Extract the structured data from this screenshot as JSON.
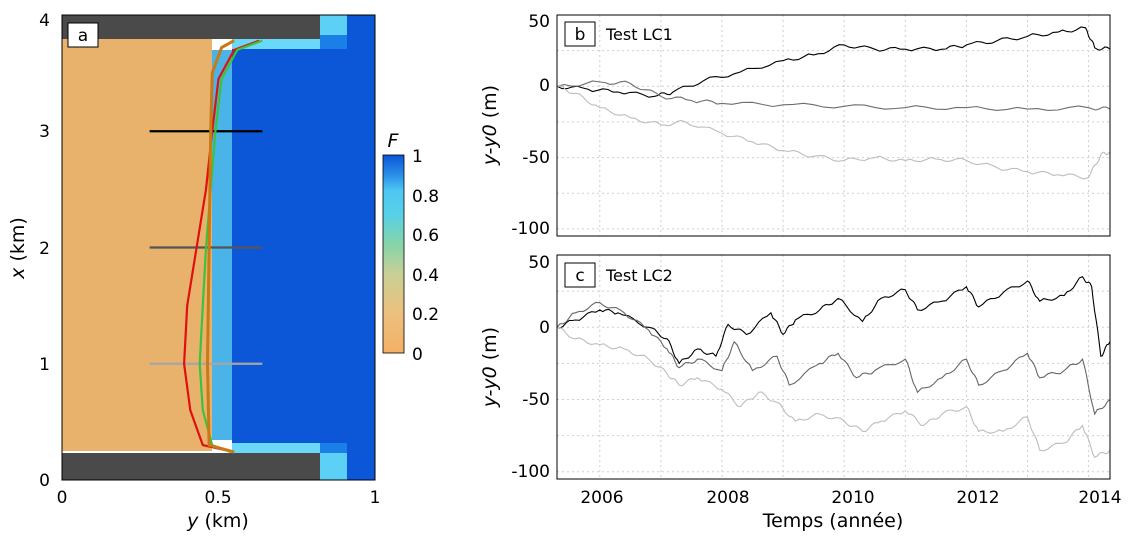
{
  "figure": {
    "panel_a": {
      "tag": "a",
      "xlabel_var": "y",
      "xlabel_unit": " (km)",
      "ylabel_var": "x",
      "ylabel_unit": " (km)",
      "xticks": [
        "0",
        "0.5",
        "1"
      ],
      "yticks": [
        "0",
        "1",
        "2",
        "3",
        "4"
      ],
      "colorbar_title": "F",
      "colorbar_ticks": [
        "0",
        "0.2",
        "0.4",
        "0.6",
        "0.8",
        "1"
      ]
    },
    "panel_b": {
      "tag": "b",
      "title": "Test LC1",
      "ylabel_var": "y-y0",
      "ylabel_unit": " (m)",
      "yticks": [
        "-100",
        "-50",
        "0",
        "50"
      ]
    },
    "panel_c": {
      "tag": "c",
      "title": "Test LC2",
      "ylabel_var": "y-y0",
      "ylabel_unit": " (m)",
      "yticks": [
        "-100",
        "-50",
        "0",
        "50"
      ]
    },
    "time_axis": {
      "xlabel": "Temps (année)",
      "xticks": [
        "2006",
        "2008",
        "2010",
        "2012",
        "2014"
      ]
    }
  },
  "chart_data": [
    {
      "id": "a",
      "type": "heatmap",
      "xlabel": "y (km)",
      "ylabel": "x (km)",
      "xlim": [
        0,
        1
      ],
      "ylim": [
        0,
        4
      ],
      "colorbar": {
        "label": "F",
        "range": [
          0,
          1
        ]
      },
      "transects": [
        {
          "x_km": 3,
          "y_range_km": [
            0.28,
            0.64
          ],
          "color": "#000000"
        },
        {
          "x_km": 2,
          "y_range_km": [
            0.28,
            0.64
          ],
          "color": "#555555"
        },
        {
          "x_km": 1,
          "y_range_km": [
            0.28,
            0.64
          ],
          "color": "#a6a6a6"
        }
      ],
      "shorelines": [
        {
          "color": "#e01010",
          "points": [
            [
              0.55,
              0.24
            ],
            [
              0.45,
              0.3
            ],
            [
              0.41,
              0.6
            ],
            [
              0.39,
              1.0
            ],
            [
              0.4,
              1.5
            ],
            [
              0.43,
              2.0
            ],
            [
              0.46,
              2.5
            ],
            [
              0.48,
              3.0
            ],
            [
              0.5,
              3.45
            ],
            [
              0.55,
              3.7
            ],
            [
              0.63,
              3.78
            ]
          ]
        },
        {
          "color": "#3cc23c",
          "points": [
            [
              0.54,
              0.24
            ],
            [
              0.48,
              0.3
            ],
            [
              0.45,
              0.6
            ],
            [
              0.44,
              1.0
            ],
            [
              0.45,
              1.5
            ],
            [
              0.46,
              2.0
            ],
            [
              0.475,
              2.5
            ],
            [
              0.49,
              3.0
            ],
            [
              0.51,
              3.45
            ],
            [
              0.56,
              3.7
            ],
            [
              0.64,
              3.78
            ]
          ]
        },
        {
          "color": "#c97a14",
          "points": [
            [
              0.55,
              0.24
            ],
            [
              0.47,
              0.3
            ],
            [
              0.465,
              1.0
            ],
            [
              0.47,
              2.0
            ],
            [
              0.475,
              3.0
            ],
            [
              0.48,
              3.5
            ],
            [
              0.51,
              3.72
            ],
            [
              0.55,
              3.78
            ]
          ]
        }
      ]
    },
    {
      "id": "b",
      "type": "line",
      "title": "Test LC1",
      "ylabel": "y-y0 (m)",
      "xlim": [
        2005.3,
        2014.35
      ],
      "ylim": [
        -105,
        50
      ],
      "series": [
        {
          "color": "#000000",
          "x": [
            2005.3,
            2005.8,
            2006.3,
            2006.9,
            2007.2,
            2007.7,
            2008.3,
            2009.0,
            2009.5,
            2010.0,
            2010.5,
            2011.0,
            2011.6,
            2012.0,
            2012.5,
            2013.0,
            2013.5,
            2013.95,
            2014.1,
            2014.35
          ],
          "y": [
            0,
            -2,
            -4,
            -7,
            -4,
            4,
            10,
            18,
            22,
            29,
            26,
            26,
            26,
            29,
            32,
            35,
            38,
            41,
            27,
            26
          ]
        },
        {
          "color": "#6e6e6e",
          "x": [
            2005.3,
            2006.0,
            2006.5,
            2007.0,
            2007.5,
            2008.0,
            2009.0,
            2010.0,
            2011.0,
            2012.0,
            2013.0,
            2014.0,
            2014.35
          ],
          "y": [
            0,
            3,
            2,
            -7,
            -10,
            -12,
            -13,
            -14,
            -15,
            -15,
            -16,
            -15,
            -16
          ]
        },
        {
          "color": "#bdbdbd",
          "x": [
            2005.3,
            2005.6,
            2006.0,
            2006.5,
            2007.0,
            2007.4,
            2008.0,
            2008.5,
            2009.0,
            2009.5,
            2010.0,
            2010.5,
            2011.0,
            2011.5,
            2012.0,
            2012.5,
            2013.0,
            2013.5,
            2014.0,
            2014.2,
            2014.35
          ],
          "y": [
            0,
            -5,
            -15,
            -22,
            -27,
            -25,
            -33,
            -39,
            -45,
            -49,
            -52,
            -50,
            -52,
            -51,
            -52,
            -57,
            -60,
            -62,
            -64,
            -48,
            -46
          ]
        }
      ]
    },
    {
      "id": "c",
      "type": "line",
      "title": "Test LC2",
      "xlabel": "Temps (année)",
      "ylabel": "y-y0 (m)",
      "xlim": [
        2005.3,
        2014.35
      ],
      "ylim": [
        -105,
        50
      ],
      "series": [
        {
          "color": "#000000",
          "x": [
            2005.3,
            2005.6,
            2006.0,
            2006.3,
            2006.8,
            2007.1,
            2007.3,
            2007.6,
            2007.9,
            2008.1,
            2008.4,
            2008.8,
            2009.0,
            2009.2,
            2009.6,
            2009.9,
            2010.3,
            2010.6,
            2011.0,
            2011.2,
            2011.6,
            2012.0,
            2012.2,
            2012.6,
            2013.0,
            2013.2,
            2013.6,
            2013.9,
            2014.05,
            2014.2,
            2014.35
          ],
          "y": [
            0,
            5,
            12,
            10,
            0,
            -8,
            -25,
            -15,
            -20,
            2,
            -5,
            10,
            -5,
            5,
            12,
            20,
            4,
            20,
            26,
            12,
            18,
            28,
            14,
            24,
            32,
            18,
            22,
            35,
            28,
            -20,
            -10
          ]
        },
        {
          "color": "#666666",
          "x": [
            2005.3,
            2005.6,
            2006.0,
            2006.4,
            2006.8,
            2007.1,
            2007.3,
            2007.6,
            2008.0,
            2008.2,
            2008.5,
            2008.9,
            2009.1,
            2009.6,
            2009.9,
            2010.2,
            2010.5,
            2011.0,
            2011.2,
            2011.6,
            2012.0,
            2012.2,
            2012.6,
            2013.0,
            2013.2,
            2013.6,
            2013.9,
            2014.1,
            2014.35
          ],
          "y": [
            0,
            10,
            17,
            10,
            -2,
            -15,
            -28,
            -22,
            -30,
            -10,
            -30,
            -20,
            -40,
            -25,
            -18,
            -35,
            -30,
            -22,
            -45,
            -35,
            -22,
            -40,
            -30,
            -18,
            -35,
            -30,
            -22,
            -60,
            -50
          ]
        },
        {
          "color": "#bdbdbd",
          "x": [
            2005.3,
            2005.6,
            2006.0,
            2006.4,
            2006.8,
            2007.1,
            2007.3,
            2007.6,
            2008.0,
            2008.3,
            2008.6,
            2008.9,
            2009.2,
            2009.6,
            2010.0,
            2010.3,
            2010.6,
            2011.0,
            2011.3,
            2011.6,
            2012.0,
            2012.2,
            2012.6,
            2013.0,
            2013.2,
            2013.6,
            2013.9,
            2014.1,
            2014.35
          ],
          "y": [
            0,
            -8,
            -12,
            -15,
            -22,
            -32,
            -40,
            -35,
            -43,
            -55,
            -45,
            -52,
            -65,
            -60,
            -65,
            -72,
            -65,
            -58,
            -68,
            -60,
            -55,
            -72,
            -72,
            -62,
            -85,
            -80,
            -68,
            -90,
            -85
          ]
        }
      ]
    }
  ]
}
